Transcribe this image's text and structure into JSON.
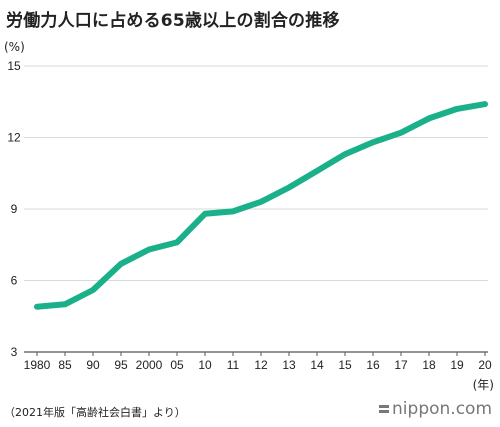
{
  "title": "労働力人口に占める65歳以上の割合の推移",
  "y_unit": "(%)",
  "x_unit": "(年)",
  "source": "（2021年版「高齢社会白書」より）",
  "logo": {
    "text": "nippon.com",
    "icon": "nippon-logo-icon"
  },
  "colors": {
    "line": "#1ab089",
    "grid": "#d9d9d9",
    "axis": "#555555"
  },
  "chart_data": {
    "type": "line",
    "title": "労働力人口に占める65歳以上の割合の推移",
    "xlabel": "(年)",
    "ylabel": "(%)",
    "ylim": [
      3,
      15
    ],
    "yticks": [
      3,
      6,
      9,
      12,
      15
    ],
    "grid": true,
    "categories": [
      "1980",
      "85",
      "90",
      "95",
      "2000",
      "05",
      "10",
      "11",
      "12",
      "13",
      "14",
      "15",
      "16",
      "17",
      "18",
      "19",
      "20"
    ],
    "values": [
      4.9,
      5.0,
      5.6,
      6.7,
      7.3,
      7.6,
      8.8,
      8.9,
      9.3,
      9.9,
      10.6,
      11.3,
      11.8,
      12.2,
      12.8,
      13.2,
      13.4
    ]
  }
}
